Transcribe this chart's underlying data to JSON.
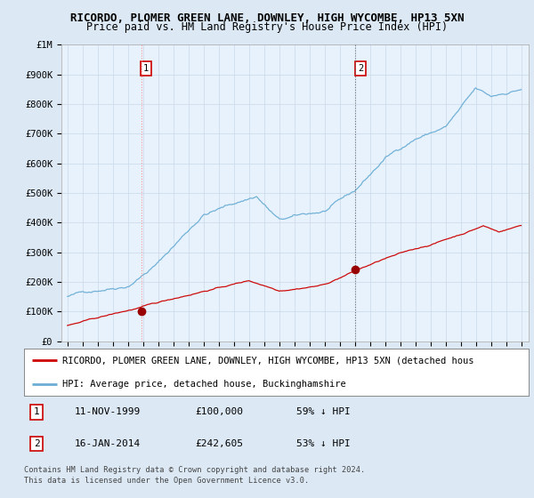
{
  "title": "RICORDO, PLOMER GREEN LANE, DOWNLEY, HIGH WYCOMBE, HP13 5XN",
  "subtitle": "Price paid vs. HM Land Registry's House Price Index (HPI)",
  "bg_color": "#dce9f5",
  "plot_bg_color": "#e8f2fc",
  "ylim": [
    0,
    1000000
  ],
  "yticks": [
    0,
    100000,
    200000,
    300000,
    400000,
    500000,
    600000,
    700000,
    800000,
    900000,
    1000000
  ],
  "ytick_labels": [
    "£0",
    "£100K",
    "£200K",
    "£300K",
    "£400K",
    "£500K",
    "£600K",
    "£700K",
    "£800K",
    "£900K",
    "£1M"
  ],
  "xlim_start": 1994.6,
  "xlim_end": 2025.5,
  "xticks": [
    1995,
    1996,
    1997,
    1998,
    1999,
    2000,
    2001,
    2002,
    2003,
    2004,
    2005,
    2006,
    2007,
    2008,
    2009,
    2010,
    2011,
    2012,
    2013,
    2014,
    2015,
    2016,
    2017,
    2018,
    2019,
    2020,
    2021,
    2022,
    2023,
    2024,
    2025
  ],
  "hpi_color": "#6baed6",
  "price_color": "#cc0000",
  "vline1_x": 1999.87,
  "vline2_x": 2014.04,
  "vline1_color": "#ff8888",
  "vline2_color": "#666666",
  "marker1_x": 1999.87,
  "marker1_y": 100000,
  "marker2_x": 2014.04,
  "marker2_y": 242605,
  "marker_color": "#990000",
  "sale1_label": "1",
  "sale1_date": "11-NOV-1999",
  "sale1_price": "£100,000",
  "sale1_hpi": "59% ↓ HPI",
  "sale2_label": "2",
  "sale2_date": "16-JAN-2014",
  "sale2_price": "£242,605",
  "sale2_hpi": "53% ↓ HPI",
  "legend_line1": "RICORDO, PLOMER GREEN LANE, DOWNLEY, HIGH WYCOMBE, HP13 5XN (detached hous",
  "legend_line2": "HPI: Average price, detached house, Buckinghamshire",
  "footer1": "Contains HM Land Registry data © Crown copyright and database right 2024.",
  "footer2": "This data is licensed under the Open Government Licence v3.0.",
  "grid_color": "#c8d8e8",
  "title_fontsize": 9,
  "subtitle_fontsize": 8.5
}
